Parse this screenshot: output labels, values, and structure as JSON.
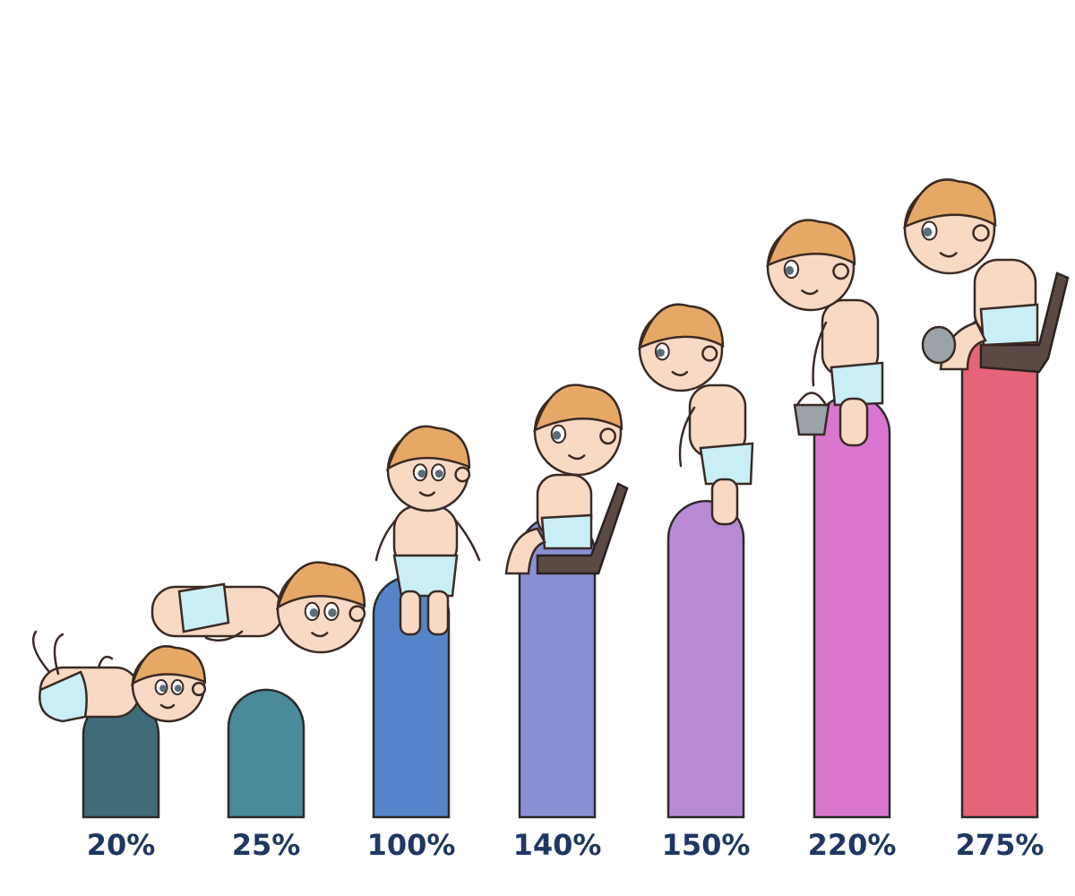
{
  "chart_data": {
    "type": "bar",
    "categories": [
      "",
      "",
      "",
      "",
      "",
      "",
      ""
    ],
    "values": [
      20,
      25,
      100,
      140,
      150,
      220,
      275
    ],
    "value_labels": [
      "20%",
      "25%",
      "100%",
      "140%",
      "150%",
      "220%",
      "275%"
    ],
    "unit": "%",
    "title": "",
    "xlabel": "",
    "ylabel": "",
    "grid": false,
    "legend": "none",
    "bar_style": "rounded-top",
    "colors": [
      "#3f6c78",
      "#4a8a9a",
      "#5585c8",
      "#8b8fd4",
      "#b88ad4",
      "#d977d0",
      "#e46478"
    ],
    "label_color": "#1f3763",
    "illustrations": [
      "baby-lying-back-icon",
      "baby-lying-on-side-icon",
      "baby-standing-icon",
      "baby-sitting-on-chair-icon",
      "baby-walking-icon",
      "baby-carrying-bucket-icon",
      "baby-on-chair-with-pot-icon"
    ]
  }
}
